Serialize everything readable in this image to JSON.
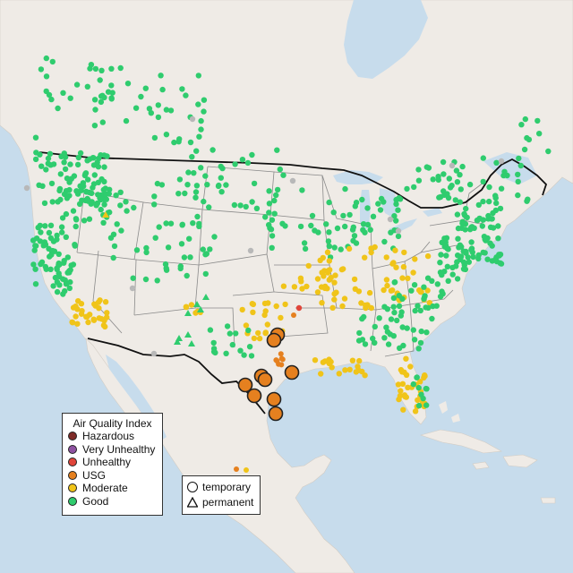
{
  "map": {
    "land_color": "#efebe6",
    "water_color": "#c7dcec",
    "us_outline_color": "#111111",
    "state_line_color": "#8a8a8a"
  },
  "aqi_legend": {
    "title": "Air Quality Index",
    "items": [
      {
        "label": "Hazardous",
        "color": "#7e2b27"
      },
      {
        "label": "Very Unhealthy",
        "color": "#8e52a1"
      },
      {
        "label": "Unhealthy",
        "color": "#e0453a"
      },
      {
        "label": "USG",
        "color": "#e5801f"
      },
      {
        "label": "Moderate",
        "color": "#f0c419"
      },
      {
        "label": "Good",
        "color": "#2fcc6e"
      }
    ]
  },
  "site_legend": {
    "items": [
      {
        "label": "temporary",
        "shape": "circle-icon"
      },
      {
        "label": "permanent",
        "shape": "triangle-icon"
      }
    ]
  },
  "no_data_color": "#b8b8b8"
}
